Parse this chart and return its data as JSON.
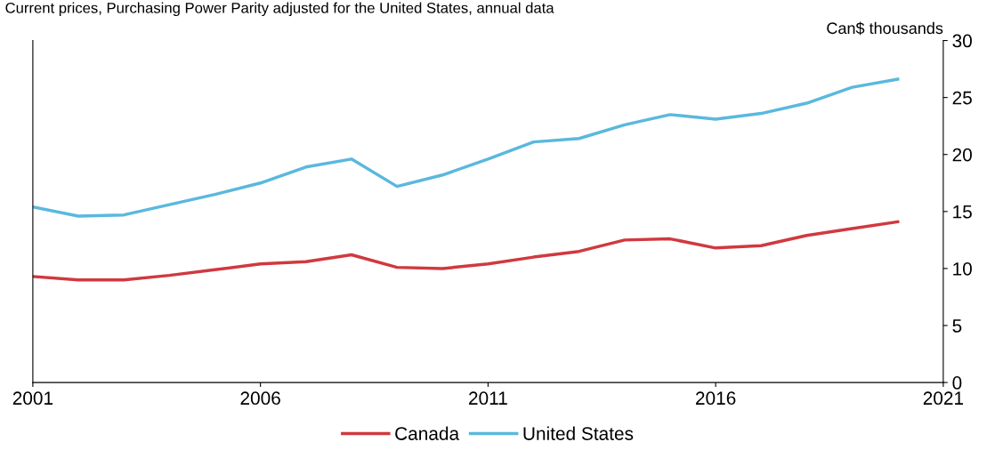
{
  "chart_data": {
    "type": "line",
    "subtitle": "Current prices, Purchasing Power Parity adjusted for the United States, annual data",
    "ylabel": "Can$ thousands",
    "x": [
      2001,
      2002,
      2003,
      2004,
      2005,
      2006,
      2007,
      2008,
      2009,
      2010,
      2011,
      2012,
      2013,
      2014,
      2015,
      2016,
      2017,
      2018,
      2019,
      2020
    ],
    "series": [
      {
        "name": "Canada",
        "color": "#d0393f",
        "values": [
          9.3,
          9.0,
          9.0,
          9.4,
          9.9,
          10.4,
          10.6,
          11.2,
          10.1,
          10.0,
          10.4,
          11.0,
          11.5,
          12.5,
          12.6,
          11.8,
          12.0,
          12.9,
          13.5,
          14.1
        ]
      },
      {
        "name": "United States",
        "color": "#5ab8de",
        "values": [
          15.4,
          14.6,
          14.7,
          15.6,
          16.5,
          17.5,
          18.9,
          19.6,
          17.2,
          18.2,
          19.6,
          21.1,
          21.4,
          22.6,
          23.5,
          23.1,
          23.6,
          24.5,
          25.9,
          26.6
        ]
      }
    ],
    "xlim": [
      2001,
      2021
    ],
    "xticks": [
      2001,
      2006,
      2011,
      2016,
      2021
    ],
    "ylim": [
      0,
      30
    ],
    "yticks": [
      0,
      5,
      10,
      15,
      20,
      25,
      30
    ],
    "grid": false,
    "legend": "bottom",
    "marker": "none",
    "line_style": "solid"
  }
}
